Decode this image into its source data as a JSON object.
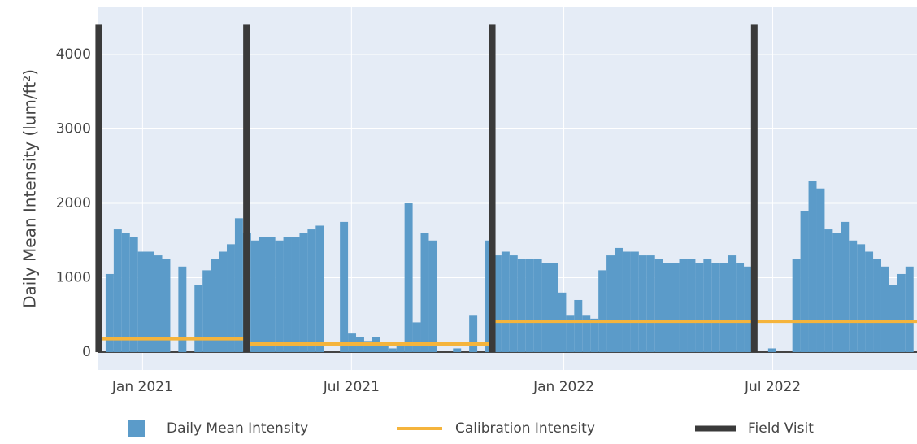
{
  "chart_data": {
    "type": "bar",
    "y_axis_title": "Daily Mean Intensity (lum/ft²)",
    "xlim": [
      "2020-11-23",
      "2022-11-03"
    ],
    "ylim": [
      -240,
      4645
    ],
    "yticks": [
      0,
      1000,
      2000,
      3000,
      4000
    ],
    "xticks": [
      {
        "value": "2021-01-01",
        "label": "Jan 2021"
      },
      {
        "value": "2021-07-01",
        "label": "Jul 2021"
      },
      {
        "value": "2022-01-01",
        "label": "Jan 2022"
      },
      {
        "value": "2022-07-01",
        "label": "Jul 2022"
      }
    ],
    "grid": true,
    "legend": "bottom",
    "series": [
      {
        "name": "Daily Mean Intensity",
        "color": "#5b9bc9",
        "type": "bar",
        "x": [
          "2020-11-30",
          "2020-12-07",
          "2020-12-14",
          "2020-12-21",
          "2020-12-28",
          "2021-01-04",
          "2021-01-11",
          "2021-01-18",
          "2021-01-25",
          "2021-02-01",
          "2021-02-08",
          "2021-02-15",
          "2021-02-22",
          "2021-03-01",
          "2021-03-08",
          "2021-03-15",
          "2021-03-22",
          "2021-03-29",
          "2021-04-05",
          "2021-04-12",
          "2021-04-19",
          "2021-04-26",
          "2021-05-03",
          "2021-05-10",
          "2021-05-17",
          "2021-05-24",
          "2021-05-31",
          "2021-06-07",
          "2021-06-14",
          "2021-06-21",
          "2021-06-28",
          "2021-07-05",
          "2021-07-12",
          "2021-07-19",
          "2021-07-26",
          "2021-08-02",
          "2021-08-09",
          "2021-08-16",
          "2021-08-23",
          "2021-08-30",
          "2021-09-06",
          "2021-09-13",
          "2021-09-20",
          "2021-09-27",
          "2021-10-04",
          "2021-10-11",
          "2021-10-18",
          "2021-10-25",
          "2021-11-01",
          "2021-11-08",
          "2021-11-15",
          "2021-11-22",
          "2021-11-29",
          "2021-12-06",
          "2021-12-13",
          "2021-12-20",
          "2021-12-27",
          "2022-01-03",
          "2022-01-10",
          "2022-01-17",
          "2022-01-24",
          "2022-01-31",
          "2022-02-07",
          "2022-02-14",
          "2022-02-21",
          "2022-02-28",
          "2022-03-07",
          "2022-03-14",
          "2022-03-21",
          "2022-03-28",
          "2022-04-04",
          "2022-04-11",
          "2022-04-18",
          "2022-04-25",
          "2022-05-02",
          "2022-05-09",
          "2022-05-16",
          "2022-05-23",
          "2022-05-30",
          "2022-06-06",
          "2022-06-13",
          "2022-06-20",
          "2022-06-27",
          "2022-07-04",
          "2022-07-11",
          "2022-07-18",
          "2022-07-25",
          "2022-08-01",
          "2022-08-08",
          "2022-08-15",
          "2022-08-22",
          "2022-08-29",
          "2022-09-05",
          "2022-09-12",
          "2022-09-19",
          "2022-09-26",
          "2022-10-03",
          "2022-10-10",
          "2022-10-17",
          "2022-10-24"
        ],
        "values": [
          1050,
          1650,
          1600,
          1550,
          1350,
          1350,
          1300,
          1250,
          0,
          1150,
          0,
          900,
          1100,
          1250,
          1350,
          1450,
          1800,
          1600,
          1500,
          1550,
          1550,
          1500,
          1550,
          1550,
          1600,
          1650,
          1700,
          0,
          0,
          1750,
          250,
          200,
          150,
          200,
          100,
          50,
          100,
          2000,
          400,
          1600,
          1500,
          0,
          0,
          50,
          0,
          500,
          0,
          1500,
          1300,
          1350,
          1300,
          1250,
          1250,
          1250,
          1200,
          1200,
          800,
          500,
          700,
          500,
          450,
          1100,
          1300,
          1400,
          1350,
          1350,
          1300,
          1300,
          1250,
          1200,
          1200,
          1250,
          1250,
          1200,
          1250,
          1200,
          1200,
          1300,
          1200,
          1150,
          0,
          0,
          50,
          0,
          0,
          1250,
          1900,
          2300,
          2200,
          1650,
          1600,
          1750,
          1500,
          1450,
          1350,
          1250,
          1150,
          900,
          1050,
          1150
        ]
      },
      {
        "name": "Calibration Intensity",
        "color": "#f5b43c",
        "type": "line",
        "x": [
          "2020-11-23",
          "2021-04-01",
          null,
          "2021-04-01",
          "2021-10-31",
          null,
          "2021-10-31",
          "2022-06-15",
          null,
          "2022-06-15",
          "2022-11-03"
        ],
        "values": [
          180,
          180,
          null,
          110,
          110,
          null,
          415,
          415,
          null,
          415,
          415
        ]
      },
      {
        "name": "Field Visit",
        "color": "#3a3a3a",
        "type": "vbar",
        "x": [
          "2020-11-24",
          "2021-04-01",
          "2021-10-31",
          "2022-06-15"
        ],
        "values": [
          4400,
          4400,
          4400,
          4400
        ]
      }
    ]
  }
}
